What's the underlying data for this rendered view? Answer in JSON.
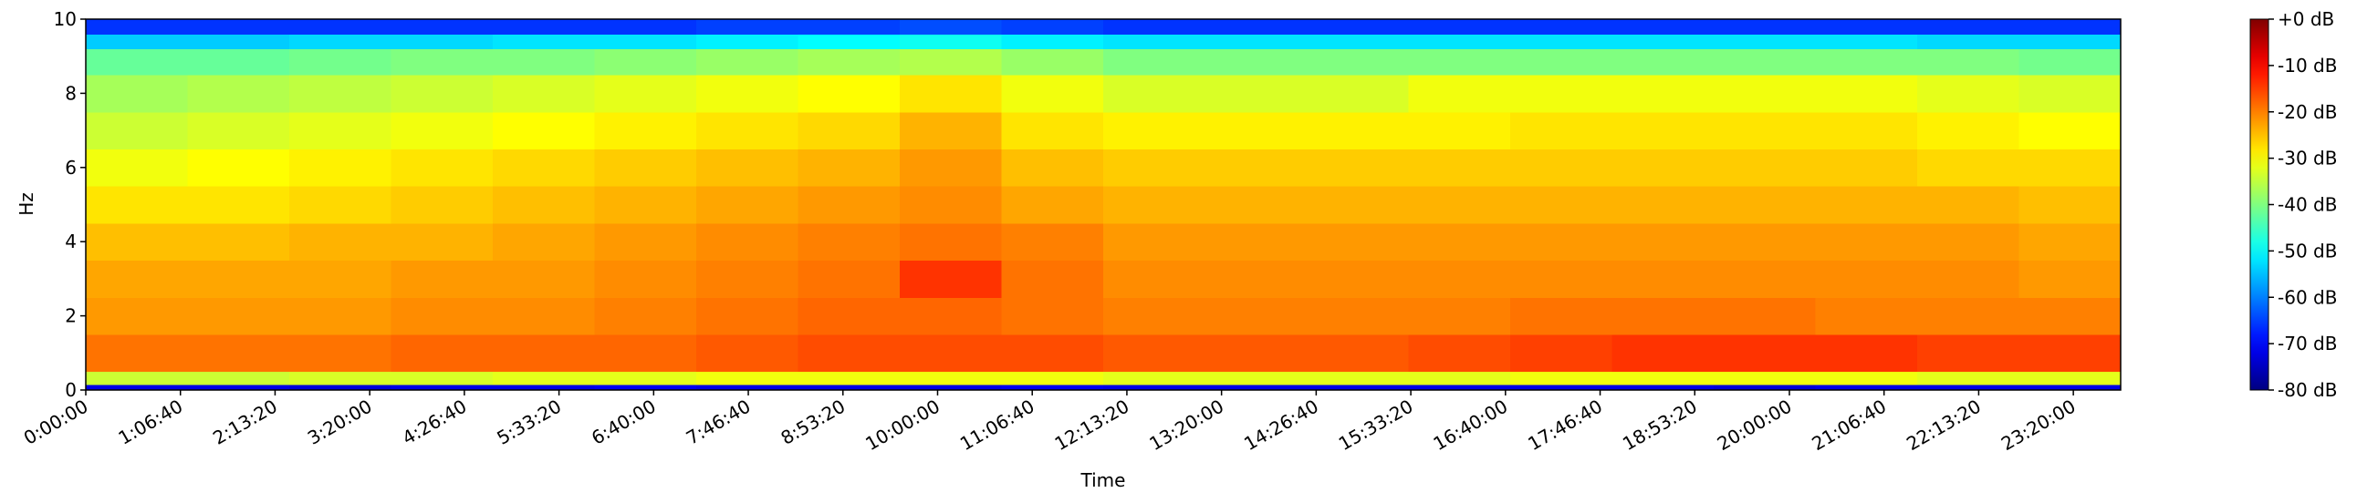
{
  "chart_data": {
    "type": "spectrogram",
    "xlabel": "Time",
    "ylabel": "Hz",
    "colormap": "jet",
    "xbins": [
      0,
      4300,
      8600,
      12900,
      17200,
      21500,
      25800,
      30100,
      34400,
      38700,
      43000,
      47300,
      51600,
      55900,
      60200,
      64500,
      68800,
      73100,
      77400,
      81700,
      86000
    ],
    "ybins": [
      0,
      0.15,
      0.5,
      1.5,
      2.5,
      3.5,
      4.5,
      5.5,
      6.5,
      7.5,
      8.5,
      9.2,
      9.6,
      10
    ],
    "z": [
      [
        -72,
        -72,
        -73,
        -72,
        -72,
        -71,
        -72,
        -72,
        -72,
        -71,
        -72,
        -72,
        -72,
        -72,
        -72,
        -72,
        -73,
        -72,
        -72,
        -72
      ],
      [
        -34,
        -34,
        -33,
        -33,
        -32,
        -32,
        -31,
        -31,
        -31,
        -31,
        -32,
        -32,
        -32,
        -32,
        -31,
        -31,
        -31,
        -31,
        -32,
        -32
      ],
      [
        -19,
        -19,
        -19,
        -18,
        -18,
        -18,
        -17,
        -16,
        -16,
        -16,
        -17,
        -17,
        -17,
        -16,
        -15,
        -14,
        -14,
        -14,
        -15,
        -15
      ],
      [
        -22,
        -22,
        -22,
        -21,
        -21,
        -20,
        -19,
        -18,
        -18,
        -19,
        -20,
        -20,
        -20,
        -20,
        -19,
        -19,
        -19,
        -20,
        -20,
        -20
      ],
      [
        -23,
        -23,
        -23,
        -22,
        -22,
        -21,
        -20,
        -19,
        -14,
        -19,
        -21,
        -21,
        -21,
        -21,
        -21,
        -21,
        -21,
        -21,
        -21,
        -22
      ],
      [
        -25,
        -25,
        -24,
        -24,
        -23,
        -22,
        -21,
        -20,
        -19,
        -20,
        -22,
        -22,
        -22,
        -22,
        -22,
        -22,
        -22,
        -22,
        -22,
        -23
      ],
      [
        -28,
        -28,
        -27,
        -26,
        -25,
        -24,
        -23,
        -22,
        -21,
        -23,
        -24,
        -24,
        -24,
        -24,
        -24,
        -24,
        -24,
        -24,
        -24,
        -25
      ],
      [
        -31,
        -30,
        -29,
        -28,
        -27,
        -26,
        -25,
        -24,
        -22,
        -25,
        -26,
        -26,
        -26,
        -26,
        -26,
        -26,
        -26,
        -26,
        -27,
        -27
      ],
      [
        -34,
        -33,
        -32,
        -31,
        -30,
        -29,
        -28,
        -27,
        -24,
        -28,
        -29,
        -29,
        -29,
        -29,
        -28,
        -28,
        -28,
        -28,
        -29,
        -30
      ],
      [
        -37,
        -36,
        -35,
        -34,
        -33,
        -32,
        -31,
        -30,
        -28,
        -31,
        -33,
        -33,
        -33,
        -31,
        -31,
        -31,
        -31,
        -31,
        -32,
        -33
      ],
      [
        -42,
        -42,
        -41,
        -40,
        -40,
        -39,
        -38,
        -37,
        -36,
        -38,
        -40,
        -40,
        -40,
        -40,
        -40,
        -40,
        -40,
        -40,
        -40,
        -41
      ],
      [
        -54,
        -54,
        -53,
        -53,
        -52,
        -52,
        -51,
        -50,
        -49,
        -51,
        -52,
        -52,
        -52,
        -52,
        -52,
        -52,
        -52,
        -52,
        -53,
        -53
      ],
      [
        -66,
        -66,
        -66,
        -66,
        -66,
        -66,
        -65,
        -65,
        -64,
        -65,
        -66,
        -66,
        -66,
        -66,
        -66,
        -66,
        -66,
        -66,
        -66,
        -66
      ]
    ],
    "xlim": [
      0,
      86000
    ],
    "ylim": [
      0,
      10
    ],
    "clim": [
      -80,
      0
    ],
    "xticks": [
      {
        "value": 0,
        "label": "0:00:00"
      },
      {
        "value": 4000,
        "label": "1:06:40"
      },
      {
        "value": 8000,
        "label": "2:13:20"
      },
      {
        "value": 12000,
        "label": "3:20:00"
      },
      {
        "value": 16000,
        "label": "4:26:40"
      },
      {
        "value": 20000,
        "label": "5:33:20"
      },
      {
        "value": 24000,
        "label": "6:40:00"
      },
      {
        "value": 28000,
        "label": "7:46:40"
      },
      {
        "value": 32000,
        "label": "8:53:20"
      },
      {
        "value": 36000,
        "label": "10:00:00"
      },
      {
        "value": 40000,
        "label": "11:06:40"
      },
      {
        "value": 44000,
        "label": "12:13:20"
      },
      {
        "value": 48000,
        "label": "13:20:00"
      },
      {
        "value": 52000,
        "label": "14:26:40"
      },
      {
        "value": 56000,
        "label": "15:33:20"
      },
      {
        "value": 60000,
        "label": "16:40:00"
      },
      {
        "value": 64000,
        "label": "17:46:40"
      },
      {
        "value": 68000,
        "label": "18:53:20"
      },
      {
        "value": 72000,
        "label": "20:00:00"
      },
      {
        "value": 76000,
        "label": "21:06:40"
      },
      {
        "value": 80000,
        "label": "22:13:20"
      },
      {
        "value": 84000,
        "label": "23:20:00"
      }
    ],
    "yticks": [
      0,
      2,
      4,
      6,
      8,
      10
    ],
    "cticks": [
      {
        "value": 0,
        "label": "+0 dB"
      },
      {
        "value": -10,
        "label": "-10 dB"
      },
      {
        "value": -20,
        "label": "-20 dB"
      },
      {
        "value": -30,
        "label": "-30 dB"
      },
      {
        "value": -40,
        "label": "-40 dB"
      },
      {
        "value": -50,
        "label": "-50 dB"
      },
      {
        "value": -60,
        "label": "-60 dB"
      },
      {
        "value": -70,
        "label": "-70 dB"
      },
      {
        "value": -80,
        "label": "-80 dB"
      }
    ]
  }
}
